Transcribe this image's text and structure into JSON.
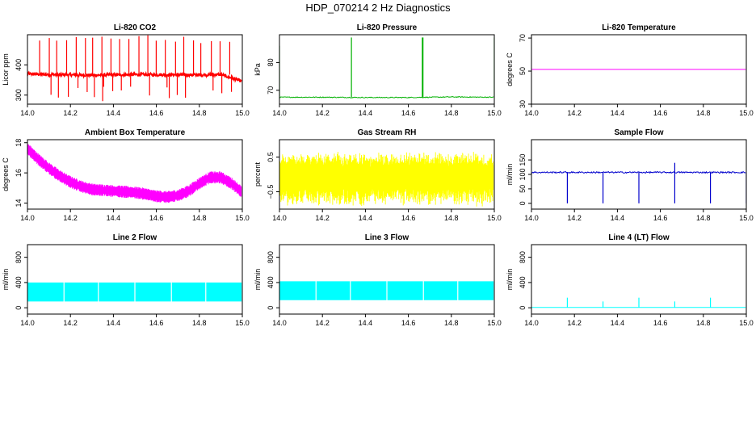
{
  "suptitle": "HDP_070214  2 Hz Diagnostics",
  "chart_data": [
    {
      "type": "line",
      "title": "Li-820 CO2",
      "ylabel": "Licor ppm",
      "color": "#ff0000",
      "xlim": [
        14.0,
        15.0
      ],
      "ylim": [
        270,
        500
      ],
      "xticks": [
        14.0,
        14.2,
        14.4,
        14.6,
        14.8,
        15.0
      ],
      "yticks": [
        300,
        400
      ],
      "pattern": "co2",
      "x": [
        14.0,
        14.1,
        14.2,
        14.3,
        14.4,
        14.5,
        14.6,
        14.7,
        14.8,
        14.9,
        15.0
      ],
      "y": [
        370,
        368,
        367,
        366,
        367,
        368,
        368,
        367,
        367,
        368,
        345
      ]
    },
    {
      "type": "line",
      "title": "Li-820 Pressure",
      "ylabel": "kPa",
      "color": "#00b000",
      "xlim": [
        14.0,
        15.0
      ],
      "ylim": [
        65,
        90
      ],
      "xticks": [
        14.0,
        14.2,
        14.4,
        14.6,
        14.8,
        15.0
      ],
      "yticks": [
        70,
        80
      ],
      "pattern": "pressure",
      "x": [
        14.0,
        14.2,
        14.4,
        14.6,
        14.8,
        15.0
      ],
      "y": [
        67.5,
        67.5,
        67.4,
        67.4,
        67.6,
        67.5
      ]
    },
    {
      "type": "line",
      "title": "Li-820 Temperature",
      "ylabel": "degrees C",
      "color": "#ff00ff",
      "xlim": [
        14.0,
        15.0
      ],
      "ylim": [
        30,
        72
      ],
      "xticks": [
        14.0,
        14.2,
        14.4,
        14.6,
        14.8,
        15.0
      ],
      "yticks": [
        30,
        50,
        70
      ],
      "pattern": "flat",
      "x": [
        14.0,
        15.0
      ],
      "y": [
        51,
        51
      ]
    },
    {
      "type": "line",
      "title": "Ambient Box Temperature",
      "ylabel": "degrees C",
      "color": "#ff00ff",
      "xlim": [
        14.0,
        15.0
      ],
      "ylim": [
        13.6,
        18.2
      ],
      "xticks": [
        14.0,
        14.2,
        14.4,
        14.6,
        14.8,
        15.0
      ],
      "yticks": [
        14,
        16,
        18
      ],
      "pattern": "band",
      "x": [
        14.0,
        14.05,
        14.1,
        14.15,
        14.2,
        14.25,
        14.3,
        14.35,
        14.4,
        14.45,
        14.5,
        14.55,
        14.6,
        14.65,
        14.7,
        14.75,
        14.8,
        14.85,
        14.9,
        14.95,
        15.0
      ],
      "y": [
        17.6,
        16.9,
        16.3,
        15.8,
        15.4,
        15.1,
        14.9,
        14.85,
        14.8,
        14.75,
        14.7,
        14.6,
        14.45,
        14.4,
        14.5,
        14.8,
        15.3,
        15.7,
        15.7,
        15.3,
        14.7
      ]
    },
    {
      "type": "line",
      "title": "Gas Stream RH",
      "ylabel": "percent",
      "color": "#ffff00",
      "xlim": [
        14.0,
        15.0
      ],
      "ylim": [
        -1.0,
        1.0
      ],
      "xticks": [
        14.0,
        14.2,
        14.4,
        14.6,
        14.8,
        15.0
      ],
      "yticks": [
        -0.5,
        0.5
      ],
      "pattern": "noise",
      "x": [
        14.0,
        14.5,
        15.0
      ],
      "y": [
        0.0,
        0.0,
        0.0
      ]
    },
    {
      "type": "line",
      "title": "Sample Flow",
      "ylabel": "ml/min",
      "color": "#0000cc",
      "xlim": [
        14.0,
        15.0
      ],
      "ylim": [
        -20,
        220
      ],
      "xticks": [
        14.0,
        14.2,
        14.4,
        14.6,
        14.8,
        15.0
      ],
      "yticks": [
        0,
        50,
        100,
        150
      ],
      "pattern": "sampleflow",
      "x": [
        14.0,
        14.5,
        15.0
      ],
      "y": [
        107,
        107,
        107
      ]
    },
    {
      "type": "line",
      "title": "Line 2 Flow",
      "ylabel": "ml/min",
      "color": "#00ffff",
      "xlim": [
        14.0,
        15.0
      ],
      "ylim": [
        -100,
        1000
      ],
      "xticks": [
        14.0,
        14.2,
        14.4,
        14.6,
        14.8,
        15.0
      ],
      "yticks": [
        0,
        400,
        800
      ],
      "pattern": "lineflow",
      "x": [
        14.0,
        14.5,
        15.0
      ],
      "y": [
        250,
        250,
        250
      ]
    },
    {
      "type": "line",
      "title": "Line 3 Flow",
      "ylabel": "ml/min",
      "color": "#00ffff",
      "xlim": [
        14.0,
        15.0
      ],
      "ylim": [
        -100,
        1000
      ],
      "xticks": [
        14.0,
        14.2,
        14.4,
        14.6,
        14.8,
        15.0
      ],
      "yticks": [
        0,
        400,
        800
      ],
      "pattern": "lineflow",
      "x": [
        14.0,
        14.5,
        15.0
      ],
      "y": [
        270,
        270,
        270
      ]
    },
    {
      "type": "line",
      "title": "Line 4 (LT) Flow",
      "ylabel": "ml/min",
      "color": "#00ffff",
      "xlim": [
        14.0,
        15.0
      ],
      "ylim": [
        -100,
        1000
      ],
      "xticks": [
        14.0,
        14.2,
        14.4,
        14.6,
        14.8,
        15.0
      ],
      "yticks": [
        0,
        400,
        800
      ],
      "pattern": "lt",
      "x": [
        14.0,
        14.5,
        15.0
      ],
      "y": [
        5,
        5,
        5
      ]
    }
  ]
}
